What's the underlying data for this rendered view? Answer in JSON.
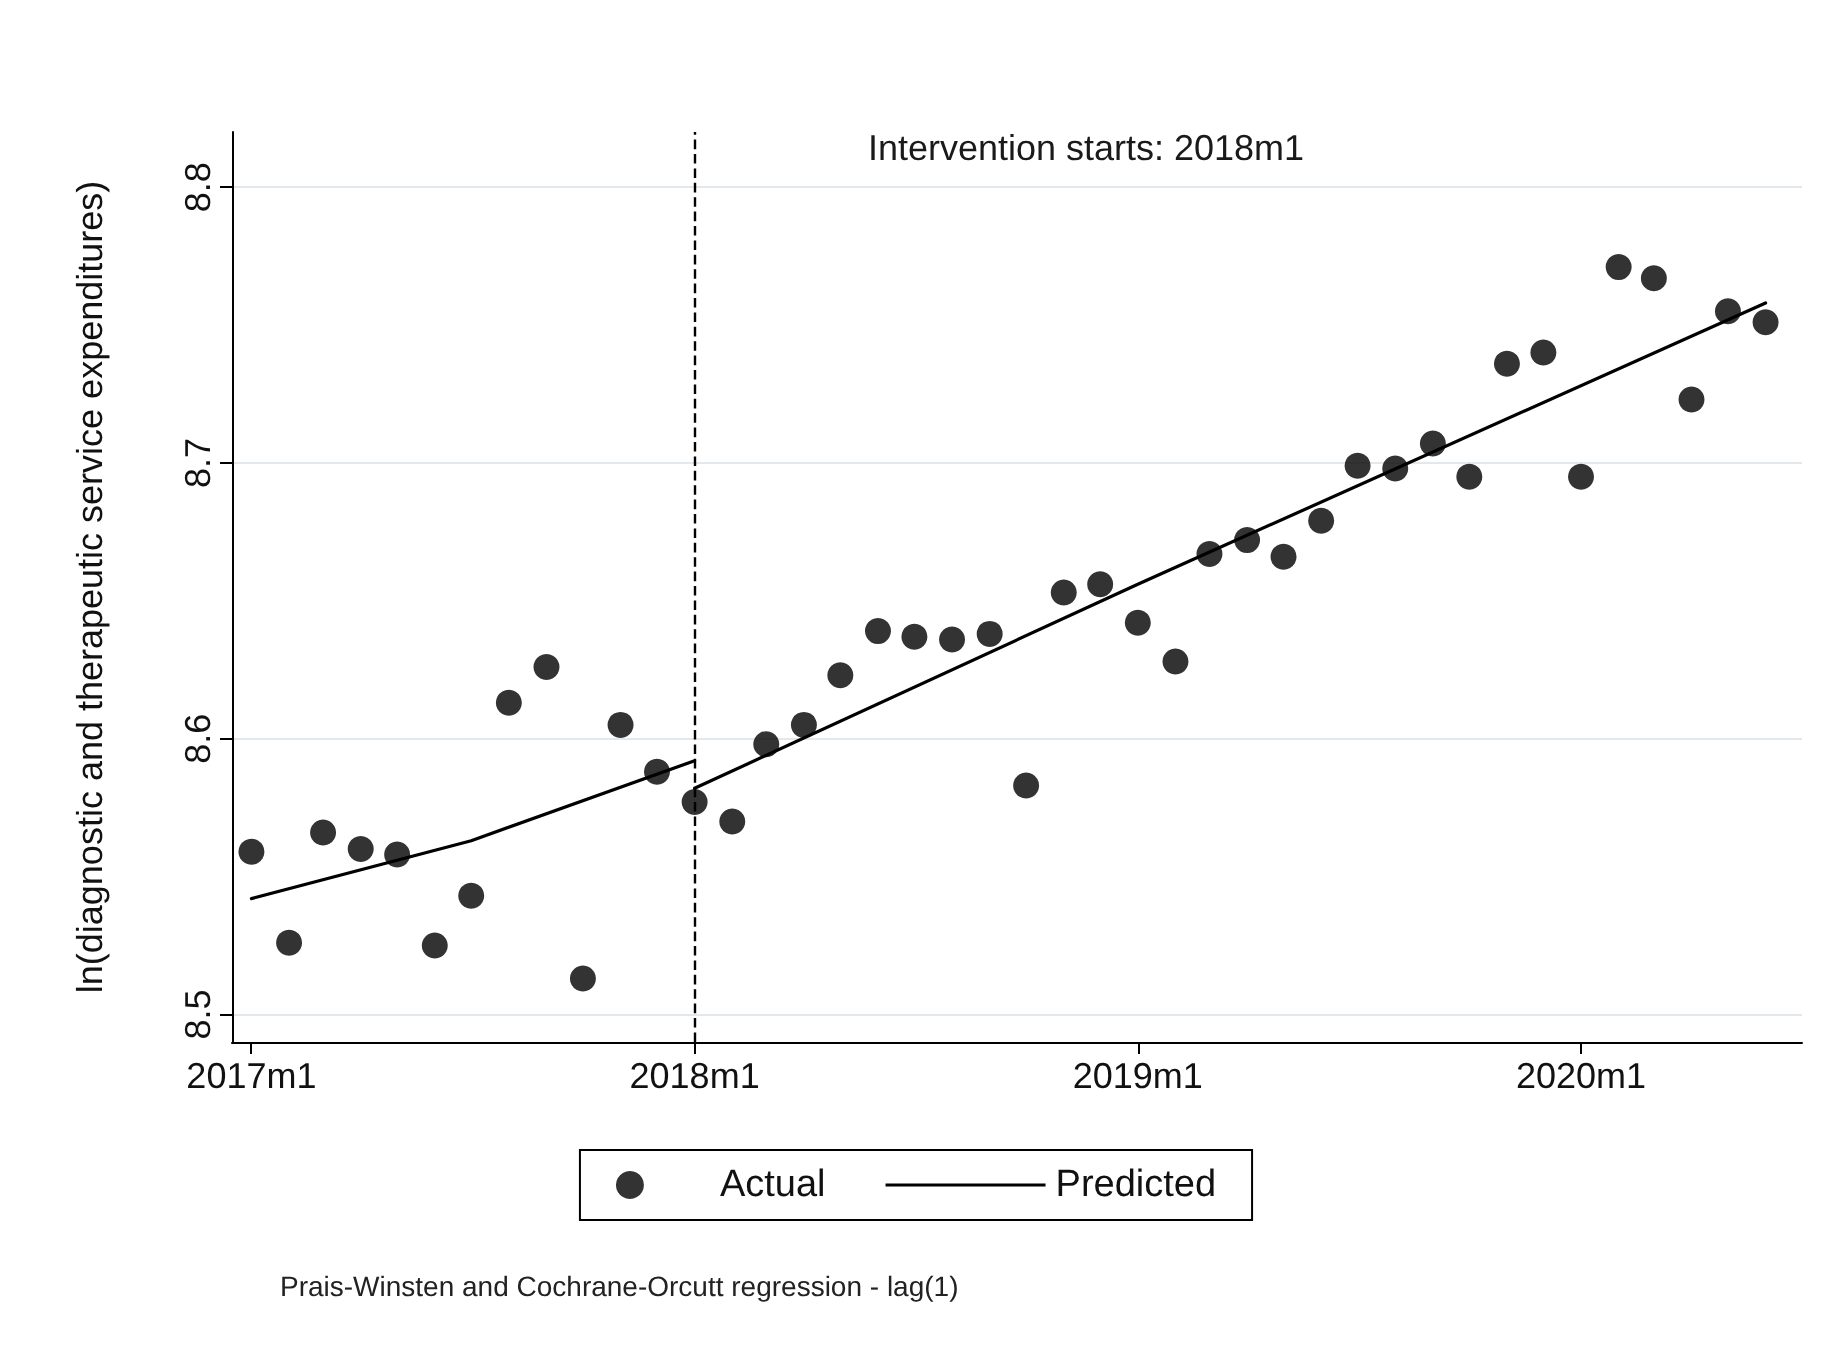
{
  "chart_data": {
    "type": "scatter",
    "title": "Intervention starts: 2018m1",
    "ylabel": "ln(diagnostic and therapeutic service expenditures)",
    "annotations": [
      "Prais-Winsten and Cochrane-Orcutt regression - lag(1)"
    ],
    "x": [
      "2017-01",
      "2017-02",
      "2017-03",
      "2017-04",
      "2017-05",
      "2017-06",
      "2017-07",
      "2017-08",
      "2017-09",
      "2017-10",
      "2017-11",
      "2017-12",
      "2018-01",
      "2018-02",
      "2018-03",
      "2018-04",
      "2018-05",
      "2018-06",
      "2018-07",
      "2018-08",
      "2018-09",
      "2018-10",
      "2018-11",
      "2018-12",
      "2019-01",
      "2019-02",
      "2019-03",
      "2019-04",
      "2019-05",
      "2019-06",
      "2019-07",
      "2019-08",
      "2019-09",
      "2019-10",
      "2019-11",
      "2019-12",
      "2020-01",
      "2020-02",
      "2020-03",
      "2020-04",
      "2020-05",
      "2020-06"
    ],
    "series": [
      {
        "name": "Actual",
        "color": "#000000",
        "marker": "circle",
        "values": [
          8.559,
          8.526,
          8.566,
          8.56,
          8.558,
          8.525,
          8.543,
          8.613,
          8.626,
          8.513,
          8.605,
          8.588,
          8.577,
          8.57,
          8.598,
          8.605,
          8.623,
          8.639,
          8.637,
          8.636,
          8.638,
          8.583,
          8.653,
          8.656,
          8.642,
          8.628,
          8.667,
          8.672,
          8.666,
          8.679,
          8.699,
          8.698,
          8.707,
          8.695,
          8.736,
          8.74,
          8.695,
          8.771,
          8.767,
          8.723,
          8.755,
          8.751
        ]
      },
      {
        "name": "Predicted",
        "type": "line",
        "color": "#000000",
        "marker": "none",
        "line_style": "solid",
        "x": [
          "2017-01",
          "2017-07",
          "2018-01"
        ],
        "values": [
          8.542,
          8.563,
          8.592
        ]
      },
      {
        "type": "line",
        "color": "#000000",
        "marker": "none",
        "line_style": "solid",
        "x": [
          "2018-01",
          "2019-01",
          "2020-06"
        ],
        "values": [
          8.582,
          8.656,
          8.758
        ]
      }
    ],
    "xlim": [
      "2016-12-16",
      "2020-07-01"
    ],
    "xticks": [
      {
        "value": "2017-01",
        "label": "2017m1"
      },
      {
        "value": "2018-01",
        "label": "2018m1"
      },
      {
        "value": "2019-01",
        "label": "2019m1"
      },
      {
        "value": "2020-01",
        "label": "2020m1"
      }
    ],
    "ylim": [
      8.49,
      8.82
    ],
    "yticks": [
      8.5,
      8.6,
      8.7,
      8.8
    ],
    "grid": "y",
    "legend": "bottom",
    "ref_lines": [
      {
        "axis": "x",
        "value": "2018-01",
        "color": "#000000",
        "line_style": "dashed"
      }
    ]
  }
}
